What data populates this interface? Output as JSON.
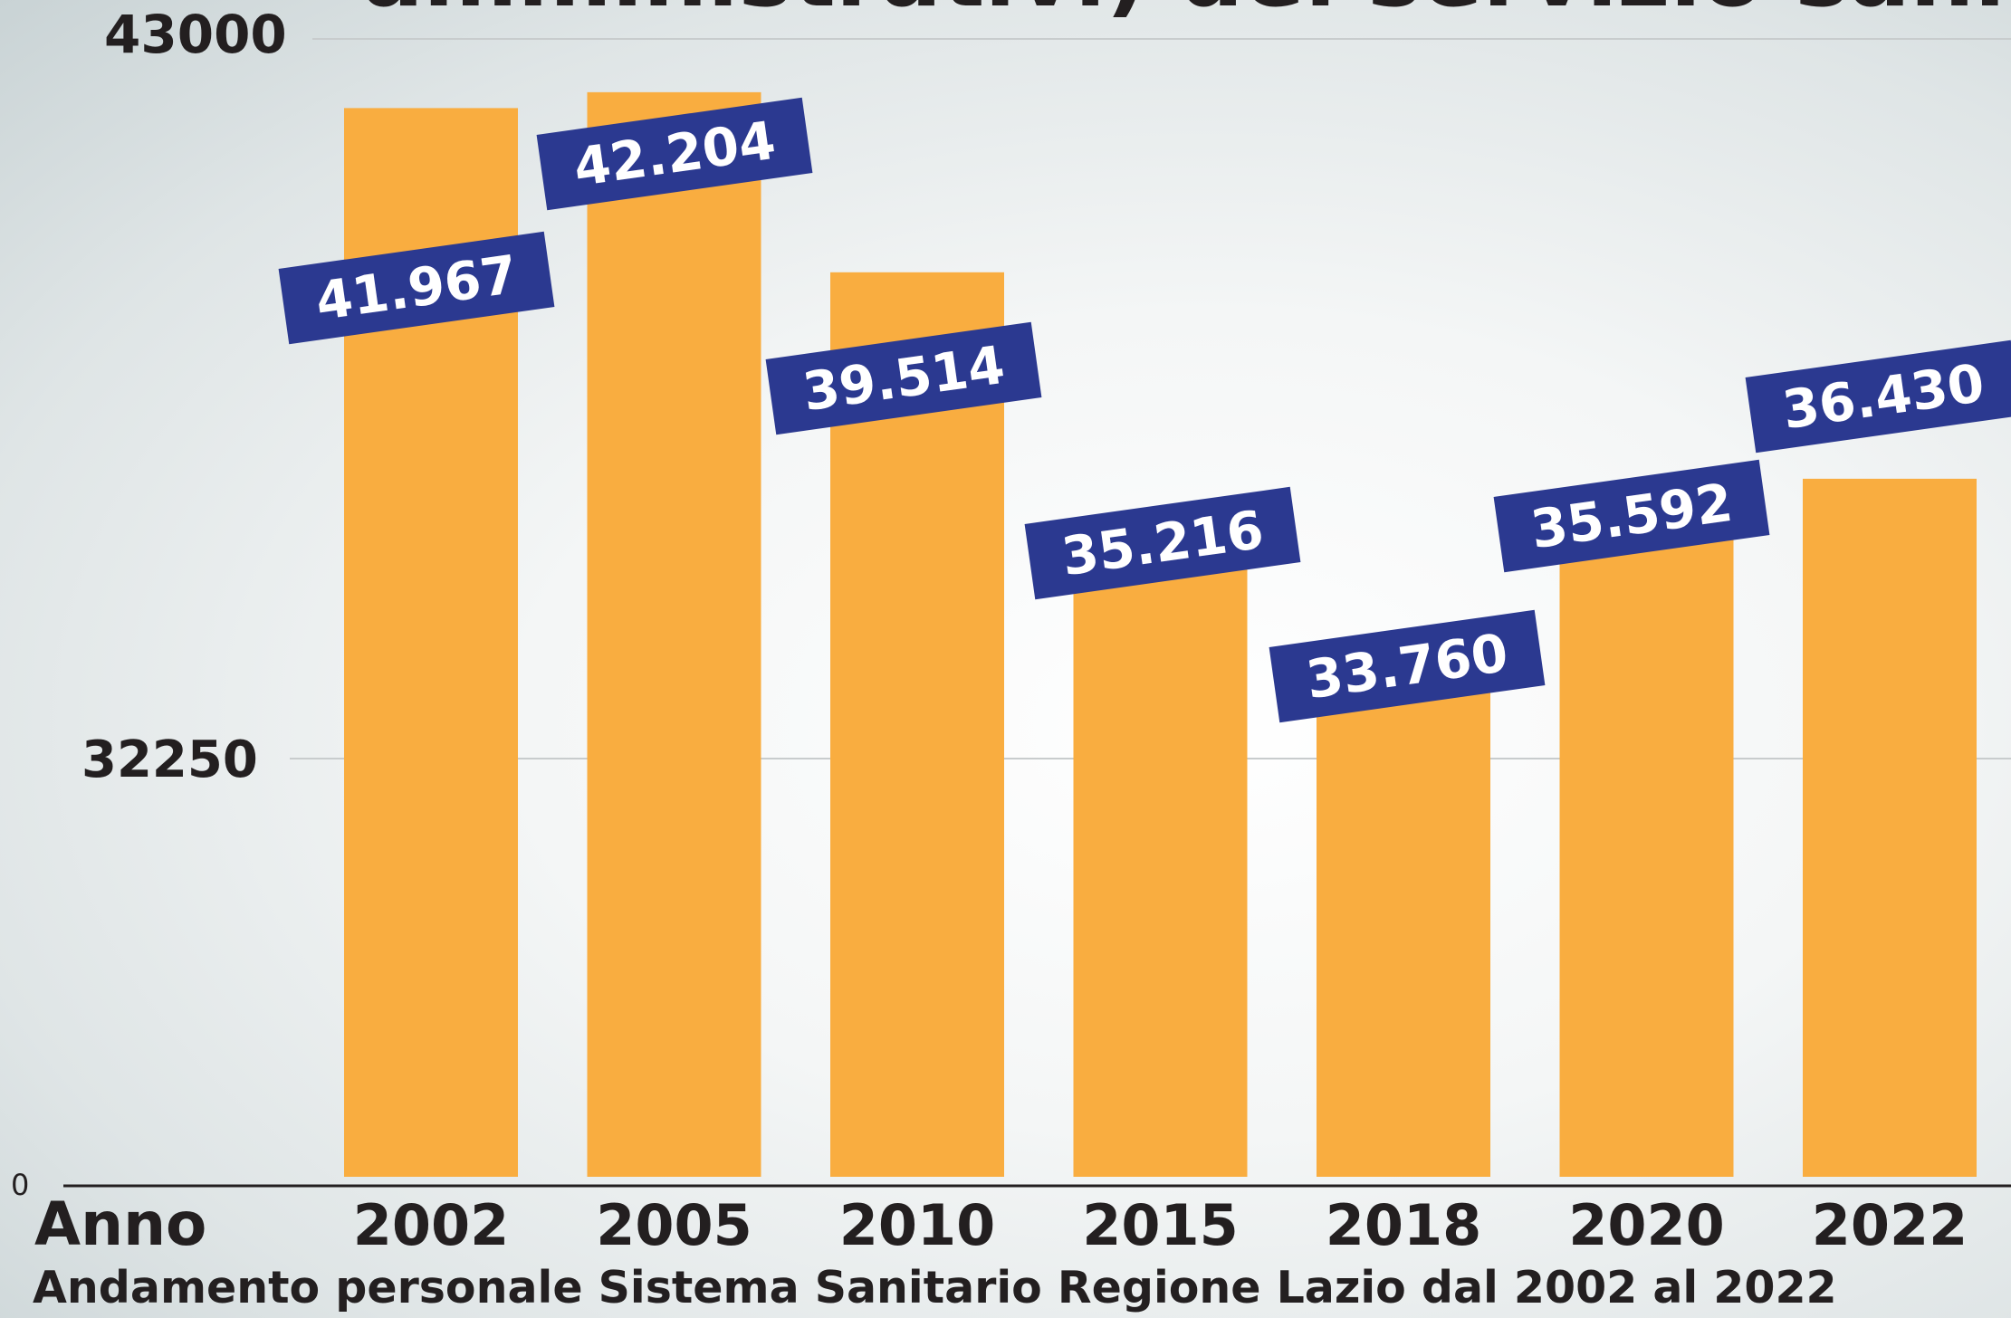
{
  "header": {
    "title_fragment": "amministrativi) del servizio sanitari"
  },
  "caption": "Andamento personale Sistema Sanitario Regione Lazio dal 2002 al 2022",
  "x_axis_name": "Anno",
  "colors": {
    "bar": "#f9ad40",
    "label_box": "#2b3990",
    "label_text": "#ffffff",
    "grid": "#c8cccd",
    "axis": "#231f20",
    "text": "#231f20"
  },
  "chart_data": {
    "type": "bar",
    "title": "",
    "xlabel": "Anno",
    "ylabel": "",
    "categories": [
      "2002",
      "2005",
      "2010",
      "2015",
      "2018",
      "2020",
      "2022"
    ],
    "values": [
      41967,
      42204,
      39514,
      35216,
      33760,
      35592,
      36430
    ],
    "value_labels": [
      "41.967",
      "42.204",
      "39.514",
      "35.216",
      "33.760",
      "35.592",
      "36.430"
    ],
    "y_ticks": [
      "0",
      "32250",
      "43000"
    ],
    "grid": true,
    "legend": "none"
  }
}
